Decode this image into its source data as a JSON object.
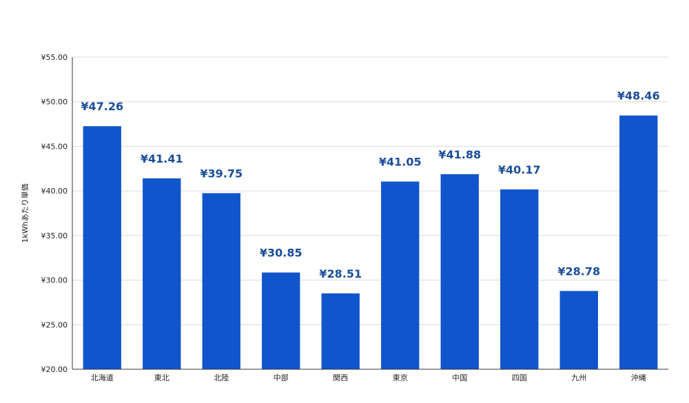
{
  "chart_data": {
    "type": "bar",
    "title": "",
    "xlabel": "",
    "ylabel": "1kWhあたり単価",
    "ylim": [
      20,
      55
    ],
    "yticks": [
      "¥20.00",
      "¥25.00",
      "¥30.00",
      "¥35.00",
      "¥40.00",
      "¥45.00",
      "¥50.00",
      "¥55.00"
    ],
    "ytick_values": [
      20,
      25,
      30,
      35,
      40,
      45,
      50,
      55
    ],
    "categories": [
      "北海道",
      "東北",
      "北陸",
      "中部",
      "関西",
      "東京",
      "中国",
      "四国",
      "九州",
      "沖縄"
    ],
    "values": [
      47.26,
      41.41,
      39.75,
      30.85,
      28.51,
      41.05,
      41.88,
      40.17,
      28.78,
      48.46
    ],
    "value_labels": [
      "¥47.26",
      "¥41.41",
      "¥39.75",
      "¥30.85",
      "¥28.51",
      "¥41.05",
      "¥41.88",
      "¥40.17",
      "¥28.78",
      "¥48.46"
    ],
    "grid": true,
    "legend": "none",
    "colors": {
      "bar": "#1155cc",
      "data_label": "#1a4d99",
      "grid": "#d9d9d9",
      "axis": "#333333"
    }
  }
}
